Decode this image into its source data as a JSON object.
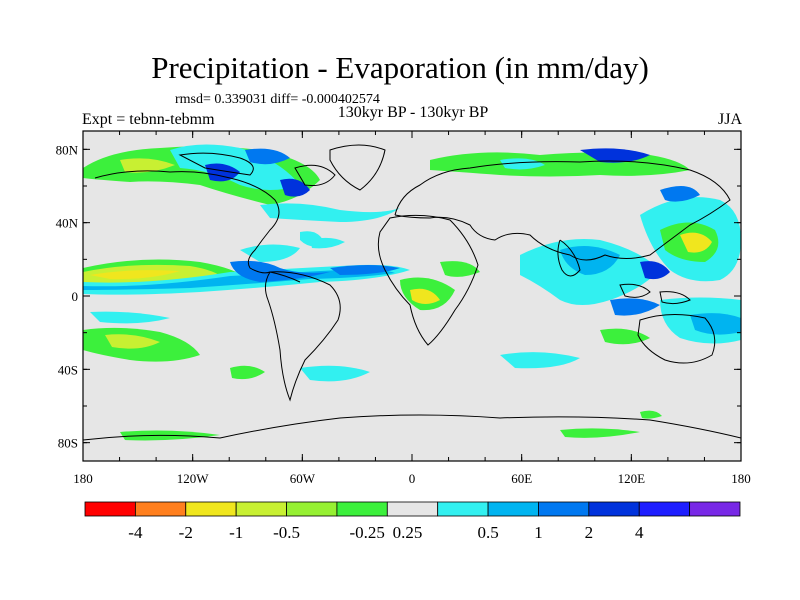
{
  "title": "Precipitation - Evaporation (in mm/day)",
  "stats": "rmsd= 0.339031 diff= -0.000402574",
  "left_label": "Expt = tebnn-tebmm",
  "center_label": "130kyr BP - 130kyr BP",
  "right_label": "JJA",
  "x_ticks": [
    "180",
    "120W",
    "60W",
    "0",
    "60E",
    "120E",
    "180"
  ],
  "y_ticks": [
    "80N",
    "40N",
    "0",
    "40S",
    "80S"
  ],
  "colorbar": {
    "colors": [
      "#ff0000",
      "#ff7f1e",
      "#f0e61e",
      "#c8f032",
      "#96f032",
      "#3cf03c",
      "#e6e6e6",
      "#32f0f0",
      "#00b4f0",
      "#0078f0",
      "#0032dc",
      "#1e1eff",
      "#7828e6"
    ],
    "labels": [
      "-4",
      "-2",
      "-1",
      "-0.5",
      "-0.25",
      "0.25",
      "0.5",
      "1",
      "2",
      "4"
    ]
  },
  "colors": {
    "map_background": "#e6e6e6",
    "coastline": "#000000"
  }
}
